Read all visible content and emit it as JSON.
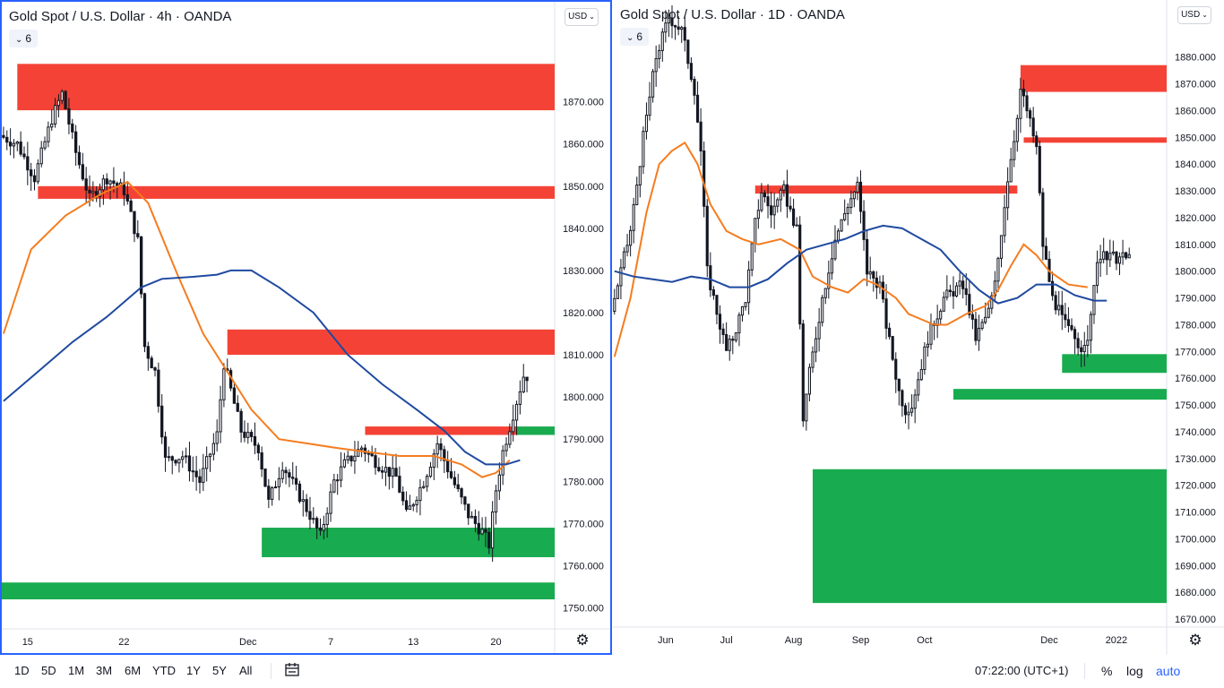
{
  "colors": {
    "supply_zone": "#f44336",
    "demand_zone": "#19ab4f",
    "ma_fast": "#f57c1f",
    "ma_slow": "#1f4aa0",
    "candle": "#131722",
    "active_border": "#2962ff"
  },
  "chart_data": [
    {
      "type": "candlestick",
      "title": "Gold Spot / U.S. Dollar · 4h · OANDA",
      "indicator_chip": "6",
      "currency": "USD",
      "ylim": [
        1745,
        1895
      ],
      "y_ticks": [
        "1870.000",
        "1860.000",
        "1850.000",
        "1840.000",
        "1830.000",
        "1820.000",
        "1810.000",
        "1800.000",
        "1790.000",
        "1780.000",
        "1770.000",
        "1760.000",
        "1750.000"
      ],
      "x_ticks": [
        "15",
        "22",
        "Dec",
        "7",
        "13",
        "20"
      ],
      "x_tick_index": [
        7,
        35,
        71,
        95,
        119,
        143
      ],
      "n_bars": 153,
      "price_path": [
        [
          0,
          1862
        ],
        [
          5,
          1860
        ],
        [
          10,
          1852
        ],
        [
          15,
          1866
        ],
        [
          18,
          1872
        ],
        [
          22,
          1858
        ],
        [
          26,
          1847
        ],
        [
          31,
          1852
        ],
        [
          36,
          1849
        ],
        [
          40,
          1837
        ],
        [
          42,
          1812
        ],
        [
          45,
          1806
        ],
        [
          48,
          1785
        ],
        [
          53,
          1786
        ],
        [
          58,
          1780
        ],
        [
          63,
          1791
        ],
        [
          65,
          1808
        ],
        [
          70,
          1792
        ],
        [
          75,
          1788
        ],
        [
          78,
          1775
        ],
        [
          82,
          1784
        ],
        [
          86,
          1778
        ],
        [
          90,
          1772
        ],
        [
          93,
          1767
        ],
        [
          97,
          1780
        ],
        [
          100,
          1784
        ],
        [
          105,
          1788
        ],
        [
          110,
          1784
        ],
        [
          115,
          1781
        ],
        [
          118,
          1772
        ],
        [
          123,
          1780
        ],
        [
          127,
          1789
        ],
        [
          131,
          1781
        ],
        [
          136,
          1772
        ],
        [
          140,
          1768
        ],
        [
          142,
          1765
        ],
        [
          144,
          1778
        ],
        [
          146,
          1787
        ],
        [
          149,
          1796
        ],
        [
          152,
          1805
        ]
      ],
      "zones": [
        {
          "kind": "supply",
          "x0": 4,
          "x1": 153,
          "ylo": 1868,
          "yhi": 1879
        },
        {
          "kind": "supply",
          "x0": 10,
          "x1": 153,
          "ylo": 1847,
          "yhi": 1850
        },
        {
          "kind": "supply",
          "x0": 65,
          "x1": 153,
          "ylo": 1810,
          "yhi": 1816
        },
        {
          "kind": "supply",
          "x0": 105,
          "x1": 149,
          "ylo": 1791,
          "yhi": 1793
        },
        {
          "kind": "demand",
          "x0": 149,
          "x1": 153,
          "ylo": 1791,
          "yhi": 1793
        },
        {
          "kind": "demand",
          "x0": 75,
          "x1": 153,
          "ylo": 1762,
          "yhi": 1769
        },
        {
          "kind": "demand",
          "x0": 0,
          "x1": 153,
          "ylo": 1752,
          "yhi": 1756
        }
      ],
      "series": [
        {
          "role": "ma_fast",
          "points": [
            [
              0,
              1815
            ],
            [
              8,
              1835
            ],
            [
              18,
              1843
            ],
            [
              28,
              1848
            ],
            [
              36,
              1851
            ],
            [
              42,
              1846
            ],
            [
              50,
              1830
            ],
            [
              58,
              1815
            ],
            [
              65,
              1806
            ],
            [
              72,
              1797
            ],
            [
              80,
              1790
            ],
            [
              88,
              1789
            ],
            [
              96,
              1788
            ],
            [
              105,
              1787
            ],
            [
              115,
              1786
            ],
            [
              125,
              1786
            ],
            [
              133,
              1784
            ],
            [
              139,
              1781
            ],
            [
              143,
              1782
            ],
            [
              147,
              1785
            ]
          ]
        },
        {
          "role": "ma_slow",
          "points": [
            [
              0,
              1799
            ],
            [
              10,
              1806
            ],
            [
              20,
              1813
            ],
            [
              30,
              1819
            ],
            [
              40,
              1826
            ],
            [
              46,
              1828
            ],
            [
              55,
              1828.5
            ],
            [
              62,
              1829
            ],
            [
              66,
              1830
            ],
            [
              72,
              1830
            ],
            [
              80,
              1826
            ],
            [
              90,
              1820
            ],
            [
              100,
              1810
            ],
            [
              110,
              1803
            ],
            [
              120,
              1797
            ],
            [
              128,
              1792
            ],
            [
              134,
              1787
            ],
            [
              140,
              1784
            ],
            [
              146,
              1784
            ],
            [
              150,
              1785
            ]
          ]
        }
      ]
    },
    {
      "type": "candlestick",
      "title": "Gold Spot / U.S. Dollar · 1D · OANDA",
      "indicator_chip": "6",
      "currency": "USD",
      "ylim": [
        1667,
        1900
      ],
      "y_ticks": [
        "1880.000",
        "1870.000",
        "1860.000",
        "1850.000",
        "1840.000",
        "1830.000",
        "1820.000",
        "1810.000",
        "1800.000",
        "1790.000",
        "1780.000",
        "1770.000",
        "1760.000",
        "1750.000",
        "1740.000",
        "1730.000",
        "1720.000",
        "1710.000",
        "1700.000",
        "1690.000",
        "1680.000",
        "1670.000"
      ],
      "x_ticks": [
        "Jun",
        "Jul",
        "Aug",
        "Sep",
        "Oct",
        "Dec",
        "2022"
      ],
      "x_tick_index": [
        16,
        35,
        56,
        77,
        97,
        136,
        157
      ],
      "n_bars": 162,
      "price_path": [
        [
          0,
          1785
        ],
        [
          6,
          1815
        ],
        [
          10,
          1850
        ],
        [
          14,
          1880
        ],
        [
          18,
          1895
        ],
        [
          22,
          1890
        ],
        [
          26,
          1868
        ],
        [
          28,
          1845
        ],
        [
          30,
          1800
        ],
        [
          33,
          1785
        ],
        [
          36,
          1770
        ],
        [
          38,
          1775
        ],
        [
          42,
          1790
        ],
        [
          45,
          1818
        ],
        [
          47,
          1830
        ],
        [
          50,
          1822
        ],
        [
          54,
          1830
        ],
        [
          58,
          1815
        ],
        [
          60,
          1745
        ],
        [
          62,
          1762
        ],
        [
          66,
          1790
        ],
        [
          70,
          1812
        ],
        [
          74,
          1825
        ],
        [
          77,
          1832
        ],
        [
          80,
          1800
        ],
        [
          84,
          1795
        ],
        [
          86,
          1780
        ],
        [
          90,
          1755
        ],
        [
          93,
          1745
        ],
        [
          96,
          1760
        ],
        [
          99,
          1775
        ],
        [
          104,
          1790
        ],
        [
          110,
          1795
        ],
        [
          114,
          1775
        ],
        [
          118,
          1785
        ],
        [
          120,
          1795
        ],
        [
          124,
          1835
        ],
        [
          126,
          1850
        ],
        [
          128,
          1868
        ],
        [
          130,
          1860
        ],
        [
          133,
          1846
        ],
        [
          135,
          1810
        ],
        [
          138,
          1790
        ],
        [
          142,
          1780
        ],
        [
          145,
          1775
        ],
        [
          148,
          1770
        ],
        [
          150,
          1782
        ],
        [
          152,
          1805
        ]
      ],
      "zones": [
        {
          "kind": "supply",
          "x0": 127,
          "x1": 162,
          "ylo": 1867,
          "yhi": 1877
        },
        {
          "kind": "supply",
          "x0": 128,
          "x1": 162,
          "ylo": 1848,
          "yhi": 1850
        },
        {
          "kind": "supply",
          "x0": 44,
          "x1": 126,
          "ylo": 1829,
          "yhi": 1832
        },
        {
          "kind": "demand",
          "x0": 140,
          "x1": 162,
          "ylo": 1762,
          "yhi": 1769
        },
        {
          "kind": "demand",
          "x0": 106,
          "x1": 162,
          "ylo": 1752,
          "yhi": 1756
        },
        {
          "kind": "demand",
          "x0": 62,
          "x1": 162,
          "ylo": 1676,
          "yhi": 1726
        }
      ],
      "series": [
        {
          "role": "ma_fast",
          "points": [
            [
              0,
              1768
            ],
            [
              5,
              1790
            ],
            [
              10,
              1822
            ],
            [
              14,
              1840
            ],
            [
              18,
              1845
            ],
            [
              22,
              1848
            ],
            [
              26,
              1840
            ],
            [
              30,
              1825
            ],
            [
              35,
              1815
            ],
            [
              40,
              1812
            ],
            [
              45,
              1810
            ],
            [
              52,
              1812
            ],
            [
              58,
              1808
            ],
            [
              62,
              1798
            ],
            [
              68,
              1794
            ],
            [
              73,
              1792
            ],
            [
              78,
              1797
            ],
            [
              82,
              1795
            ],
            [
              88,
              1790
            ],
            [
              92,
              1784
            ],
            [
              96,
              1782
            ],
            [
              100,
              1780
            ],
            [
              104,
              1780
            ],
            [
              110,
              1784
            ],
            [
              116,
              1787
            ],
            [
              120,
              1793
            ],
            [
              124,
              1802
            ],
            [
              128,
              1810
            ],
            [
              132,
              1806
            ],
            [
              136,
              1800
            ],
            [
              142,
              1795
            ],
            [
              148,
              1794
            ]
          ]
        },
        {
          "role": "ma_slow",
          "points": [
            [
              0,
              1800
            ],
            [
              6,
              1798
            ],
            [
              12,
              1797
            ],
            [
              18,
              1796
            ],
            [
              24,
              1798
            ],
            [
              30,
              1797
            ],
            [
              36,
              1794
            ],
            [
              42,
              1794
            ],
            [
              48,
              1797
            ],
            [
              54,
              1803
            ],
            [
              60,
              1808
            ],
            [
              66,
              1810
            ],
            [
              72,
              1812
            ],
            [
              78,
              1815
            ],
            [
              84,
              1817
            ],
            [
              90,
              1816
            ],
            [
              96,
              1812
            ],
            [
              102,
              1808
            ],
            [
              108,
              1800
            ],
            [
              114,
              1793
            ],
            [
              120,
              1788
            ],
            [
              126,
              1790
            ],
            [
              132,
              1795
            ],
            [
              138,
              1795
            ],
            [
              144,
              1791
            ],
            [
              150,
              1789
            ],
            [
              154,
              1789
            ]
          ]
        }
      ]
    }
  ],
  "bottom_bar": {
    "ranges": [
      "1D",
      "5D",
      "1M",
      "3M",
      "6M",
      "YTD",
      "1Y",
      "5Y",
      "All"
    ],
    "time": "07:22:00 (UTC+1)",
    "percent": "%",
    "log": "log",
    "auto": "auto"
  }
}
